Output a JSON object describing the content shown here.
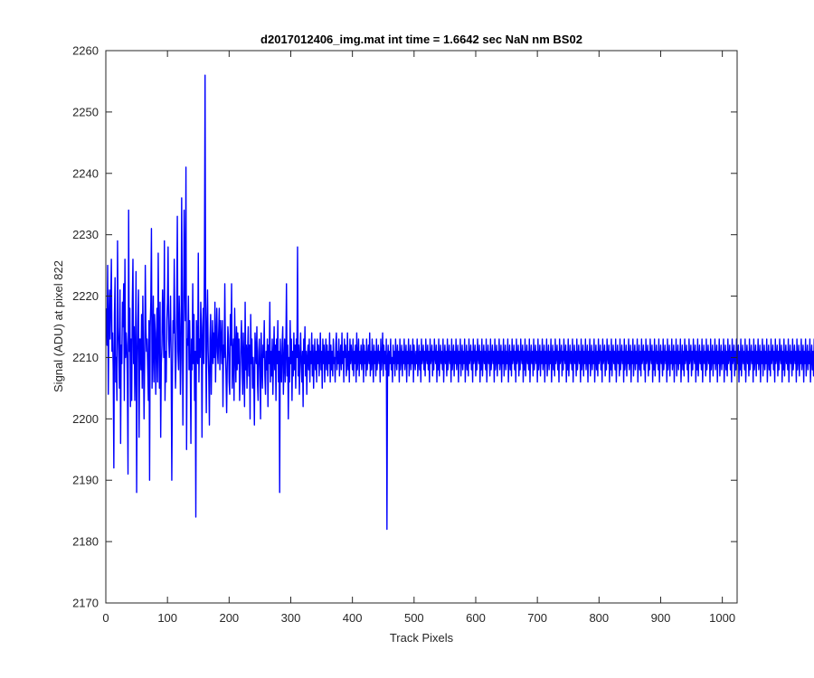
{
  "chart_data": {
    "type": "line",
    "title": "d2017012406_img.mat int time = 1.6642 sec  NaN nm BS02",
    "xlabel": "Track Pixels",
    "ylabel": "Signal (ADU) at pixel 822",
    "xlim": [
      0,
      1024
    ],
    "ylim": [
      2170,
      2260
    ],
    "xticks": [
      0,
      100,
      200,
      300,
      400,
      500,
      600,
      700,
      800,
      900,
      1000
    ],
    "yticks": [
      2170,
      2180,
      2190,
      2200,
      2210,
      2220,
      2230,
      2240,
      2250,
      2260
    ],
    "grid": false,
    "line_color": "#0000ff",
    "axis_color": "#262626",
    "series": [
      {
        "x_start": 1,
        "x_step": 1,
        "values": [
          2218,
          2212,
          2225,
          2204,
          2216,
          2221,
          2213,
          2219,
          2226,
          2211,
          2214,
          2208,
          2192,
          2217,
          2223,
          2206,
          2210,
          2203,
          2229,
          2215,
          2211,
          2205,
          2221,
          2196,
          2212,
          2209,
          2219,
          2215,
          2222,
          2203,
          2226,
          2210,
          2214,
          2212,
          2206,
          2191,
          2234,
          2211,
          2218,
          2202,
          2213,
          2203,
          2219,
          2226,
          2209,
          2215,
          2203,
          2210,
          2224,
          2188,
          2209,
          2216,
          2221,
          2197,
          2213,
          2213,
          2208,
          2217,
          2205,
          2220,
          2211,
          2200,
          2209,
          2225,
          2215,
          2211,
          2213,
          2208,
          2203,
          2216,
          2190,
          2215,
          2219,
          2231,
          2205,
          2211,
          2220,
          2206,
          2217,
          2214,
          2204,
          2212,
          2218,
          2206,
          2227,
          2213,
          2205,
          2219,
          2197,
          2209,
          2212,
          2221,
          2216,
          2210,
          2229,
          2203,
          2211,
          2206,
          2216,
          2219,
          2228,
          2213,
          2210,
          2215,
          2220,
          2209,
          2190,
          2207,
          2216,
          2214,
          2226,
          2213,
          2205,
          2210,
          2218,
          2233,
          2211,
          2208,
          2220,
          2215,
          2204,
          2210,
          2236,
          2218,
          2199,
          2214,
          2234,
          2222,
          2216,
          2241,
          2195,
          2213,
          2212,
          2220,
          2208,
          2216,
          2209,
          2196,
          2213,
          2208,
          2222,
          2209,
          2217,
          2203,
          2211,
          2184,
          2216,
          2212,
          2209,
          2227,
          2206,
          2213,
          2210,
          2219,
          2215,
          2197,
          2213,
          2218,
          2209,
          2226,
          2256,
          2212,
          2201,
          2216,
          2221,
          2211,
          2207,
          2199,
          2213,
          2217,
          2204,
          2211,
          2216,
          2209,
          2214,
          2210,
          2219,
          2206,
          2213,
          2218,
          2211,
          2209,
          2214,
          2218,
          2208,
          2216,
          2213,
          2209,
          2216,
          2202,
          2212,
          2210,
          2222,
          2211,
          2207,
          2201,
          2209,
          2215,
          2213,
          2206,
          2204,
          2217,
          2212,
          2222,
          2205,
          2210,
          2213,
          2203,
          2218,
          2211,
          2206,
          2215,
          2208,
          2214,
          2209,
          2213,
          2203,
          2207,
          2212,
          2216,
          2210,
          2204,
          2214,
          2209,
          2202,
          2219,
          2208,
          2212,
          2205,
          2211,
          2215,
          2207,
          2212,
          2200,
          2217,
          2209,
          2213,
          2205,
          2210,
          2207,
          2199,
          2214,
          2211,
          2209,
          2215,
          2206,
          2203,
          2211,
          2213,
          2208,
          2200,
          2214,
          2209,
          2205,
          2212,
          2210,
          2216,
          2207,
          2204,
          2211,
          2208,
          2213,
          2202,
          2212,
          2209,
          2219,
          2206,
          2211,
          2207,
          2213,
          2204,
          2210,
          2215,
          2208,
          2212,
          2203,
          2213,
          2209,
          2216,
          2206,
          2211,
          2188,
          2213,
          2209,
          2206,
          2212,
          2215,
          2204,
          2209,
          2213,
          2206,
          2211,
          2222,
          2207,
          2212,
          2200,
          2210,
          2206,
          2216,
          2209,
          2213,
          2203,
          2211,
          2207,
          2214,
          2208,
          2212,
          2205,
          2213,
          2210,
          2228,
          2207,
          2212,
          2204,
          2210,
          2214,
          2209,
          2206,
          2211,
          2202,
          2213,
          2209,
          2215,
          2207,
          2211,
          2204,
          2210,
          2212,
          2208,
          2213,
          2206,
          2211,
          2209,
          2214,
          2207,
          2212,
          2205,
          2210,
          2213,
          2208,
          2211,
          2206,
          2213,
          2209,
          2212,
          2207,
          2210,
          2214,
          2208,
          2211,
          2205,
          2213,
          2209,
          2212,
          2206,
          2210,
          2213,
          2208,
          2212,
          2207,
          2211,
          2209,
          2214,
          2206,
          2212,
          2208,
          2211,
          2207,
          2213,
          2209,
          2210,
          2206,
          2212,
          2214,
          2208,
          2211,
          2209,
          2213,
          2207,
          2210,
          2212,
          2208,
          2214,
          2209,
          2211,
          2206,
          2213,
          2210,
          2212,
          2207,
          2209,
          2214,
          2208,
          2211,
          2206,
          2213,
          2209,
          2212,
          2210,
          2208,
          2213,
          2207,
          2211,
          2209,
          2212,
          2206,
          2214,
          2208,
          2210,
          2213,
          2207,
          2211,
          2209,
          2212,
          2208,
          2210,
          2213,
          2206,
          2212,
          2209,
          2211,
          2207,
          2213,
          2208,
          2210,
          2212,
          2209,
          2214,
          2207,
          2211,
          2208,
          2213,
          2210,
          2206,
          2212,
          2209,
          2211,
          2207,
          2213,
          2208,
          2210,
          2212,
          2209,
          2211,
          2206,
          2213,
          2208,
          2210,
          2214,
          2207,
          2212,
          2209,
          2211,
          2208,
          2213,
          2182,
          2210,
          2212,
          2207,
          2211,
          2209,
          2213,
          2208,
          2210,
          2206,
          2212,
          2209,
          2211,
          2207,
          2213,
          2210,
          2208,
          2212,
          2209,
          2211,
          2206,
          2213,
          2208,
          2210,
          2212,
          2207,
          2211,
          2209,
          2213,
          2208,
          2210,
          2212,
          2206,
          2211,
          2209,
          2213,
          2207,
          2210,
          2212,
          2208,
          2211,
          2209,
          2213,
          2206,
          2212,
          2210,
          2208,
          2211,
          2209,
          2213,
          2207,
          2210,
          2212,
          2208,
          2211,
          2206,
          2213,
          2209,
          2210,
          2212,
          2208,
          2211,
          2207,
          2213,
          2210,
          2209,
          2212,
          2208,
          2211,
          2206,
          2213,
          2209,
          2210,
          2212,
          2207,
          2211,
          2208,
          2213,
          2210,
          2209,
          2212,
          2206,
          2211,
          2208,
          2213,
          2207,
          2210,
          2212,
          2209,
          2211,
          2208,
          2213,
          2206,
          2210,
          2212,
          2209,
          2211,
          2207,
          2213,
          2208,
          2210,
          2212,
          2209,
          2211,
          2206,
          2213,
          2208,
          2210,
          2212,
          2207,
          2211,
          2209,
          2213,
          2208,
          2210,
          2212,
          2206,
          2211,
          2209,
          2213,
          2207,
          2210,
          2212,
          2208,
          2211,
          2209,
          2213,
          2206,
          2210,
          2212,
          2208,
          2211,
          2207,
          2213,
          2209,
          2210,
          2212,
          2208,
          2211,
          2206,
          2213,
          2209,
          2210,
          2212,
          2207,
          2211,
          2208,
          2213,
          2210,
          2209,
          2212,
          2206,
          2211,
          2208,
          2213,
          2207,
          2210,
          2212,
          2209,
          2211,
          2208,
          2213,
          2206,
          2210,
          2212,
          2209,
          2211,
          2207,
          2213,
          2208,
          2210,
          2212,
          2209,
          2211,
          2206,
          2213,
          2208,
          2210,
          2212,
          2207,
          2211,
          2209,
          2213,
          2208,
          2210,
          2212,
          2206,
          2211,
          2209,
          2213,
          2207,
          2210,
          2212,
          2208,
          2211,
          2209,
          2213,
          2206,
          2210,
          2212,
          2208,
          2211,
          2207,
          2213,
          2209,
          2210,
          2212,
          2208,
          2211,
          2206,
          2213,
          2209,
          2210,
          2212,
          2207,
          2211,
          2208,
          2213,
          2210,
          2209,
          2212,
          2206,
          2211,
          2208,
          2213,
          2207,
          2210,
          2212,
          2209,
          2211,
          2208,
          2213,
          2206,
          2210,
          2212,
          2209,
          2211,
          2207,
          2213,
          2208,
          2210,
          2212,
          2209,
          2211,
          2206,
          2213,
          2208,
          2210,
          2212,
          2207,
          2211,
          2209,
          2213,
          2208,
          2210,
          2212,
          2206,
          2211,
          2209,
          2213,
          2207,
          2210,
          2212,
          2208,
          2211,
          2209,
          2213,
          2206,
          2210,
          2212,
          2208,
          2211,
          2207,
          2213,
          2209,
          2210,
          2212,
          2208,
          2211,
          2206,
          2213,
          2209,
          2210,
          2212,
          2207,
          2211,
          2208,
          2213,
          2210,
          2209,
          2212,
          2206,
          2211,
          2208,
          2213,
          2207,
          2210,
          2212,
          2209,
          2211,
          2208,
          2213,
          2206,
          2210,
          2212,
          2209,
          2211,
          2207,
          2213,
          2208,
          2210,
          2212,
          2209,
          2211,
          2206,
          2213,
          2208,
          2210,
          2212,
          2207,
          2211,
          2209,
          2213,
          2208,
          2210,
          2212,
          2206,
          2211,
          2209,
          2213,
          2207,
          2210,
          2212,
          2208,
          2211,
          2209,
          2213,
          2206,
          2210,
          2212,
          2208,
          2211,
          2207,
          2213,
          2209,
          2210,
          2212,
          2208,
          2211,
          2206,
          2213,
          2209,
          2210,
          2212,
          2207,
          2211,
          2208,
          2213,
          2210,
          2209,
          2212,
          2206,
          2211,
          2208,
          2213,
          2207,
          2210,
          2212,
          2209,
          2211,
          2208,
          2213,
          2206,
          2210,
          2212,
          2209,
          2211,
          2207,
          2213,
          2208,
          2210,
          2212,
          2209,
          2211,
          2206,
          2213,
          2208,
          2210,
          2212,
          2207,
          2211,
          2209,
          2213,
          2208,
          2210,
          2212,
          2206,
          2211,
          2209,
          2213,
          2207,
          2210,
          2212,
          2208,
          2211,
          2209,
          2213,
          2206,
          2210,
          2212,
          2208,
          2211,
          2207,
          2213,
          2209,
          2210,
          2212,
          2208,
          2211,
          2206,
          2213,
          2209,
          2210,
          2212,
          2207,
          2211,
          2208,
          2213,
          2210,
          2209,
          2212,
          2206,
          2211,
          2208,
          2213,
          2207,
          2210,
          2212,
          2209,
          2211,
          2208,
          2213,
          2206,
          2210,
          2212,
          2209,
          2211,
          2207,
          2213,
          2208,
          2210,
          2212,
          2209,
          2211,
          2206,
          2213,
          2208,
          2210,
          2212,
          2207,
          2211,
          2209,
          2213,
          2208,
          2210,
          2212,
          2206,
          2211,
          2209,
          2213,
          2207,
          2210,
          2212,
          2208,
          2211,
          2209,
          2213,
          2206,
          2210,
          2212,
          2208,
          2211,
          2207,
          2213,
          2209,
          2210,
          2212,
          2208,
          2211,
          2206,
          2213,
          2209,
          2210,
          2212,
          2207,
          2211,
          2208,
          2213,
          2210,
          2209,
          2212,
          2206,
          2211,
          2208,
          2213,
          2207,
          2210,
          2212,
          2209,
          2211,
          2208,
          2213,
          2206,
          2210,
          2212,
          2209,
          2211,
          2207,
          2213,
          2208,
          2210,
          2212,
          2209,
          2211,
          2206,
          2213,
          2208,
          2210,
          2212,
          2207,
          2211,
          2209,
          2213,
          2208,
          2210,
          2212,
          2206,
          2211,
          2209,
          2213,
          2207,
          2210,
          2212,
          2208,
          2211,
          2209,
          2213,
          2206,
          2210,
          2212,
          2208,
          2211,
          2207,
          2213,
          2209,
          2210,
          2212,
          2208,
          2211,
          2206,
          2213,
          2209,
          2210,
          2212,
          2207,
          2211,
          2208,
          2213,
          2210,
          2209,
          2212,
          2206,
          2211,
          2208,
          2213,
          2207,
          2210,
          2212,
          2209,
          2211,
          2208,
          2213,
          2206,
          2210,
          2212,
          2209,
          2211,
          2207,
          2213,
          2208,
          2210,
          2212,
          2209,
          2211,
          2206,
          2213,
          2208,
          2210,
          2212,
          2207,
          2211,
          2209,
          2213,
          2208,
          2210,
          2212,
          2206,
          2211,
          2209,
          2213,
          2207,
          2210,
          2212,
          2208,
          2211,
          2209,
          2213,
          2206,
          2210,
          2212,
          2208,
          2211,
          2207,
          2213,
          2209,
          2210,
          2212,
          2208,
          2211,
          2206,
          2213,
          2209,
          2210,
          2212,
          2207,
          2211,
          2208,
          2213,
          2210,
          2209,
          2212,
          2206,
          2211,
          2208,
          2213,
          2207,
          2210,
          2212,
          2209,
          2211,
          2208,
          2213,
          2206,
          2210,
          2212,
          2209,
          2211,
          2207,
          2213,
          2208,
          2210,
          2212,
          2209,
          2211,
          2206,
          2213,
          2208,
          2210,
          2212,
          2207,
          2211,
          2209,
          2213,
          2208,
          2210,
          2212,
          2206,
          2211,
          2209,
          2213,
          2207,
          2210,
          2212,
          2208,
          2211,
          2209,
          2213,
          2206,
          2210,
          2212,
          2208,
          2211,
          2207,
          2213,
          2209,
          2210,
          2212,
          2208,
          2211,
          2206,
          2213,
          2209,
          2210,
          2212,
          2207,
          2211,
          2208,
          2213
        ]
      }
    ]
  }
}
